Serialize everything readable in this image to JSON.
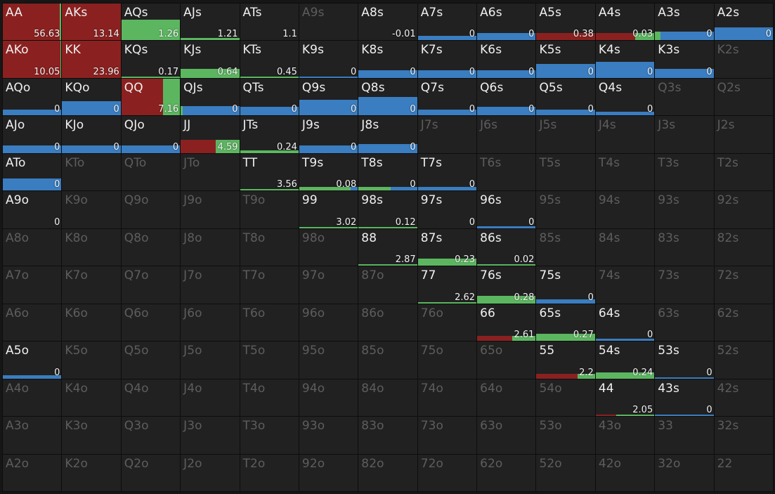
{
  "colors": {
    "raise": "#8a2120",
    "call": "#5cb660",
    "fold": "#3a7dc0"
  },
  "ranks": [
    "A",
    "K",
    "Q",
    "J",
    "T",
    "9",
    "8",
    "7",
    "6",
    "5",
    "4",
    "3",
    "2"
  ],
  "hands": [
    [
      {
        "name": "AA",
        "active": true,
        "value": "56.63",
        "raise": 0.97,
        "call": 0.03,
        "fold": 0,
        "height": 1
      },
      {
        "name": "AKs",
        "active": true,
        "value": "13.14",
        "raise": 1,
        "call": 0,
        "fold": 0,
        "height": 1
      },
      {
        "name": "AQs",
        "active": true,
        "value": "1.26",
        "raise": 0,
        "call": 1,
        "fold": 0,
        "height": 0.57
      },
      {
        "name": "AJs",
        "active": true,
        "value": "1.21",
        "raise": 0,
        "call": 1,
        "fold": 0,
        "height": 0.06
      },
      {
        "name": "ATs",
        "active": true,
        "value": "1.1",
        "raise": 0,
        "call": 0,
        "fold": 0,
        "height": 0
      },
      {
        "name": "A9s",
        "active": false
      },
      {
        "name": "A8s",
        "active": true,
        "value": "-0.01",
        "raise": 0,
        "call": 0,
        "fold": 0,
        "height": 0
      },
      {
        "name": "A7s",
        "active": true,
        "value": "0",
        "raise": 0,
        "call": 0,
        "fold": 1,
        "height": 0.13
      },
      {
        "name": "A6s",
        "active": true,
        "value": "0",
        "raise": 0,
        "call": 0,
        "fold": 1,
        "height": 0.2
      },
      {
        "name": "A5s",
        "active": true,
        "value": "0.38",
        "raise": 1,
        "call": 0,
        "fold": 0,
        "height": 0.2
      },
      {
        "name": "A4s",
        "active": true,
        "value": "0.03",
        "raise": 0.67,
        "call": 0.33,
        "fold": 0,
        "height": 0.2
      },
      {
        "name": "A3s",
        "active": true,
        "value": "0",
        "raise": 0,
        "call": 0.09,
        "fold": 0.91,
        "height": 0.24
      },
      {
        "name": "A2s",
        "active": true,
        "value": "0",
        "raise": 0,
        "call": 0,
        "fold": 1,
        "height": 0.35
      }
    ],
    [
      {
        "name": "AKo",
        "active": true,
        "value": "10.05",
        "raise": 0.98,
        "call": 0.02,
        "fold": 0,
        "height": 1
      },
      {
        "name": "KK",
        "active": true,
        "value": "23.96",
        "raise": 1,
        "call": 0,
        "fold": 0,
        "height": 1
      },
      {
        "name": "KQs",
        "active": true,
        "value": "0.17",
        "raise": 0,
        "call": 1,
        "fold": 0,
        "height": 0.03
      },
      {
        "name": "KJs",
        "active": true,
        "value": "0.64",
        "raise": 0,
        "call": 1,
        "fold": 0,
        "height": 0.25
      },
      {
        "name": "KTs",
        "active": true,
        "value": "0.45",
        "raise": 0,
        "call": 1,
        "fold": 0,
        "height": 0.04
      },
      {
        "name": "K9s",
        "active": true,
        "value": "0",
        "raise": 0,
        "call": 0,
        "fold": 1,
        "height": 0.04
      },
      {
        "name": "K8s",
        "active": true,
        "value": "0",
        "raise": 0,
        "call": 0,
        "fold": 1,
        "height": 0.2
      },
      {
        "name": "K7s",
        "active": true,
        "value": "0",
        "raise": 0,
        "call": 0,
        "fold": 1,
        "height": 0.2
      },
      {
        "name": "K6s",
        "active": true,
        "value": "0",
        "raise": 0,
        "call": 0,
        "fold": 1,
        "height": 0.2
      },
      {
        "name": "K5s",
        "active": true,
        "value": "0",
        "raise": 0,
        "call": 0,
        "fold": 1,
        "height": 0.38
      },
      {
        "name": "K4s",
        "active": true,
        "value": "0",
        "raise": 0,
        "call": 0,
        "fold": 1,
        "height": 0.43
      },
      {
        "name": "K3s",
        "active": true,
        "value": "0",
        "raise": 0,
        "call": 0,
        "fold": 1,
        "height": 0.25
      },
      {
        "name": "K2s",
        "active": false
      }
    ],
    [
      {
        "name": "AQo",
        "active": true,
        "value": "0",
        "raise": 0,
        "call": 0,
        "fold": 1,
        "height": 0.16
      },
      {
        "name": "KQo",
        "active": true,
        "value": "0",
        "raise": 0,
        "call": 0,
        "fold": 1,
        "height": 0.38
      },
      {
        "name": "QQ",
        "active": true,
        "value": "7.16",
        "raise": 0.71,
        "call": 0.29,
        "fold": 0,
        "height": 1
      },
      {
        "name": "QJs",
        "active": true,
        "value": "0",
        "raise": 0,
        "call": 0.03,
        "fold": 0.97,
        "height": 0.25
      },
      {
        "name": "QTs",
        "active": true,
        "value": "0",
        "raise": 0,
        "call": 0,
        "fold": 1,
        "height": 0.23
      },
      {
        "name": "Q9s",
        "active": true,
        "value": "0",
        "raise": 0,
        "call": 0,
        "fold": 1,
        "height": 0.42
      },
      {
        "name": "Q8s",
        "active": true,
        "value": "0",
        "raise": 0,
        "call": 0,
        "fold": 1,
        "height": 0.5
      },
      {
        "name": "Q7s",
        "active": true,
        "value": "0",
        "raise": 0,
        "call": 0,
        "fold": 1,
        "height": 0.16
      },
      {
        "name": "Q6s",
        "active": true,
        "value": "0",
        "raise": 0,
        "call": 0,
        "fold": 1,
        "height": 0.23
      },
      {
        "name": "Q5s",
        "active": true,
        "value": "0",
        "raise": 0,
        "call": 0,
        "fold": 1,
        "height": 0.16
      },
      {
        "name": "Q4s",
        "active": true,
        "value": "0",
        "raise": 0,
        "call": 0,
        "fold": 1,
        "height": 0.1
      },
      {
        "name": "Q3s",
        "active": false
      },
      {
        "name": "Q2s",
        "active": false
      }
    ],
    [
      {
        "name": "AJo",
        "active": true,
        "value": "0",
        "raise": 0,
        "call": 0,
        "fold": 1,
        "height": 0.2
      },
      {
        "name": "KJo",
        "active": true,
        "value": "0",
        "raise": 0,
        "call": 0,
        "fold": 1,
        "height": 0.2
      },
      {
        "name": "QJo",
        "active": true,
        "value": "0",
        "raise": 0,
        "call": 0,
        "fold": 1,
        "height": 0.2
      },
      {
        "name": "JJ",
        "active": true,
        "value": "4.59",
        "raise": 0.6,
        "call": 0.4,
        "fold": 0,
        "height": 0.35
      },
      {
        "name": "JTs",
        "active": true,
        "value": "0.24",
        "raise": 0,
        "call": 1,
        "fold": 0,
        "height": 0.08
      },
      {
        "name": "J9s",
        "active": true,
        "value": "0",
        "raise": 0,
        "call": 0,
        "fold": 1,
        "height": 0.2
      },
      {
        "name": "J8s",
        "active": true,
        "value": "0",
        "raise": 0,
        "call": 0,
        "fold": 1,
        "height": 0.25
      },
      {
        "name": "J7s",
        "active": false
      },
      {
        "name": "J6s",
        "active": false
      },
      {
        "name": "J5s",
        "active": false
      },
      {
        "name": "J4s",
        "active": false
      },
      {
        "name": "J3s",
        "active": false
      },
      {
        "name": "J2s",
        "active": false
      }
    ],
    [
      {
        "name": "ATo",
        "active": true,
        "value": "0",
        "raise": 0,
        "call": 0,
        "fold": 1,
        "height": 0.33
      },
      {
        "name": "KTo",
        "active": false
      },
      {
        "name": "QTo",
        "active": false
      },
      {
        "name": "JTo",
        "active": false
      },
      {
        "name": "TT",
        "active": true,
        "value": "3.56",
        "raise": 0,
        "call": 1,
        "fold": 0,
        "height": 0.04
      },
      {
        "name": "T9s",
        "active": true,
        "value": "0.08",
        "raise": 0,
        "call": 0.88,
        "fold": 0.12,
        "height": 0.1
      },
      {
        "name": "T8s",
        "active": true,
        "value": "0",
        "raise": 0,
        "call": 0.55,
        "fold": 0.45,
        "height": 0.1
      },
      {
        "name": "T7s",
        "active": true,
        "value": "0",
        "raise": 0,
        "call": 0,
        "fold": 1,
        "height": 0.1
      },
      {
        "name": "T6s",
        "active": false
      },
      {
        "name": "T5s",
        "active": false
      },
      {
        "name": "T4s",
        "active": false
      },
      {
        "name": "T3s",
        "active": false
      },
      {
        "name": "T2s",
        "active": false
      }
    ],
    [
      {
        "name": "A9o",
        "active": true,
        "value": "0",
        "raise": 0,
        "call": 0,
        "fold": 0,
        "height": 0
      },
      {
        "name": "K9o",
        "active": false
      },
      {
        "name": "Q9o",
        "active": false
      },
      {
        "name": "J9o",
        "active": false
      },
      {
        "name": "T9o",
        "active": false
      },
      {
        "name": "99",
        "active": true,
        "value": "3.02",
        "raise": 0,
        "call": 1,
        "fold": 0,
        "height": 0.04
      },
      {
        "name": "98s",
        "active": true,
        "value": "0.12",
        "raise": 0,
        "call": 1,
        "fold": 0,
        "height": 0.04
      },
      {
        "name": "97s",
        "active": true,
        "value": "0",
        "raise": 0,
        "call": 0,
        "fold": 0,
        "height": 0
      },
      {
        "name": "96s",
        "active": true,
        "value": "0",
        "raise": 0,
        "call": 0,
        "fold": 1,
        "height": 0.06
      },
      {
        "name": "95s",
        "active": false
      },
      {
        "name": "94s",
        "active": false
      },
      {
        "name": "93s",
        "active": false
      },
      {
        "name": "92s",
        "active": false
      }
    ],
    [
      {
        "name": "A8o",
        "active": false
      },
      {
        "name": "K8o",
        "active": false
      },
      {
        "name": "Q8o",
        "active": false
      },
      {
        "name": "J8o",
        "active": false
      },
      {
        "name": "T8o",
        "active": false
      },
      {
        "name": "98o",
        "active": false
      },
      {
        "name": "88",
        "active": true,
        "value": "2.87",
        "raise": 0,
        "call": 1,
        "fold": 0,
        "height": 0.04
      },
      {
        "name": "87s",
        "active": true,
        "value": "0.23",
        "raise": 0,
        "call": 1,
        "fold": 0,
        "height": 0.2
      },
      {
        "name": "86s",
        "active": true,
        "value": "0.02",
        "raise": 0,
        "call": 1,
        "fold": 0,
        "height": 0.04
      },
      {
        "name": "85s",
        "active": false
      },
      {
        "name": "84s",
        "active": false
      },
      {
        "name": "83s",
        "active": false
      },
      {
        "name": "82s",
        "active": false
      }
    ],
    [
      {
        "name": "A7o",
        "active": false
      },
      {
        "name": "K7o",
        "active": false
      },
      {
        "name": "Q7o",
        "active": false
      },
      {
        "name": "J7o",
        "active": false
      },
      {
        "name": "T7o",
        "active": false
      },
      {
        "name": "97o",
        "active": false
      },
      {
        "name": "87o",
        "active": false
      },
      {
        "name": "77",
        "active": true,
        "value": "2.62",
        "raise": 0,
        "call": 1,
        "fold": 0,
        "height": 0.04
      },
      {
        "name": "76s",
        "active": true,
        "value": "0.28",
        "raise": 0,
        "call": 1,
        "fold": 0,
        "height": 0.2
      },
      {
        "name": "75s",
        "active": true,
        "value": "0",
        "raise": 0,
        "call": 0,
        "fold": 1,
        "height": 0.1
      },
      {
        "name": "74s",
        "active": false
      },
      {
        "name": "73s",
        "active": false
      },
      {
        "name": "72s",
        "active": false
      }
    ],
    [
      {
        "name": "A6o",
        "active": false
      },
      {
        "name": "K6o",
        "active": false
      },
      {
        "name": "Q6o",
        "active": false
      },
      {
        "name": "J6o",
        "active": false
      },
      {
        "name": "T6o",
        "active": false
      },
      {
        "name": "96o",
        "active": false
      },
      {
        "name": "86o",
        "active": false
      },
      {
        "name": "76o",
        "active": false
      },
      {
        "name": "66",
        "active": true,
        "value": "2.61",
        "raise": 0.6,
        "call": 0.4,
        "fold": 0,
        "height": 0.13
      },
      {
        "name": "65s",
        "active": true,
        "value": "0.27",
        "raise": 0,
        "call": 1,
        "fold": 0,
        "height": 0.2
      },
      {
        "name": "64s",
        "active": true,
        "value": "0",
        "raise": 0,
        "call": 0,
        "fold": 1,
        "height": 0.06
      },
      {
        "name": "63s",
        "active": false
      },
      {
        "name": "62s",
        "active": false
      }
    ],
    [
      {
        "name": "A5o",
        "active": true,
        "value": "0",
        "raise": 0,
        "call": 0,
        "fold": 1,
        "height": 0.08
      },
      {
        "name": "K5o",
        "active": false
      },
      {
        "name": "Q5o",
        "active": false
      },
      {
        "name": "J5o",
        "active": false
      },
      {
        "name": "T5o",
        "active": false
      },
      {
        "name": "95o",
        "active": false
      },
      {
        "name": "85o",
        "active": false
      },
      {
        "name": "75o",
        "active": false
      },
      {
        "name": "65o",
        "active": false
      },
      {
        "name": "55",
        "active": true,
        "value": "2.2",
        "raise": 0.7,
        "call": 0.3,
        "fold": 0,
        "height": 0.13
      },
      {
        "name": "54s",
        "active": true,
        "value": "0.24",
        "raise": 0,
        "call": 1,
        "fold": 0,
        "height": 0.16
      },
      {
        "name": "53s",
        "active": true,
        "value": "0",
        "raise": 0,
        "call": 0,
        "fold": 1,
        "height": 0.04
      },
      {
        "name": "52s",
        "active": false
      }
    ],
    [
      {
        "name": "A4o",
        "active": false
      },
      {
        "name": "K4o",
        "active": false
      },
      {
        "name": "Q4o",
        "active": false
      },
      {
        "name": "J4o",
        "active": false
      },
      {
        "name": "T4o",
        "active": false
      },
      {
        "name": "94o",
        "active": false
      },
      {
        "name": "84o",
        "active": false
      },
      {
        "name": "74o",
        "active": false
      },
      {
        "name": "64o",
        "active": false
      },
      {
        "name": "54o",
        "active": false
      },
      {
        "name": "44",
        "active": true,
        "value": "2.05",
        "raise": 0.35,
        "call": 0.65,
        "fold": 0,
        "height": 0.04
      },
      {
        "name": "43s",
        "active": true,
        "value": "0",
        "raise": 0,
        "call": 0,
        "fold": 1,
        "height": 0.04
      },
      {
        "name": "42s",
        "active": false
      }
    ],
    [
      {
        "name": "A3o",
        "active": false
      },
      {
        "name": "K3o",
        "active": false
      },
      {
        "name": "Q3o",
        "active": false
      },
      {
        "name": "J3o",
        "active": false
      },
      {
        "name": "T3o",
        "active": false
      },
      {
        "name": "93o",
        "active": false
      },
      {
        "name": "83o",
        "active": false
      },
      {
        "name": "73o",
        "active": false
      },
      {
        "name": "63o",
        "active": false
      },
      {
        "name": "53o",
        "active": false
      },
      {
        "name": "43o",
        "active": false
      },
      {
        "name": "33",
        "active": false
      },
      {
        "name": "32s",
        "active": false
      }
    ],
    [
      {
        "name": "A2o",
        "active": false
      },
      {
        "name": "K2o",
        "active": false
      },
      {
        "name": "Q2o",
        "active": false
      },
      {
        "name": "J2o",
        "active": false
      },
      {
        "name": "T2o",
        "active": false
      },
      {
        "name": "92o",
        "active": false
      },
      {
        "name": "82o",
        "active": false
      },
      {
        "name": "72o",
        "active": false
      },
      {
        "name": "62o",
        "active": false
      },
      {
        "name": "52o",
        "active": false
      },
      {
        "name": "42o",
        "active": false
      },
      {
        "name": "32o",
        "active": false
      },
      {
        "name": "22",
        "active": false
      }
    ]
  ]
}
